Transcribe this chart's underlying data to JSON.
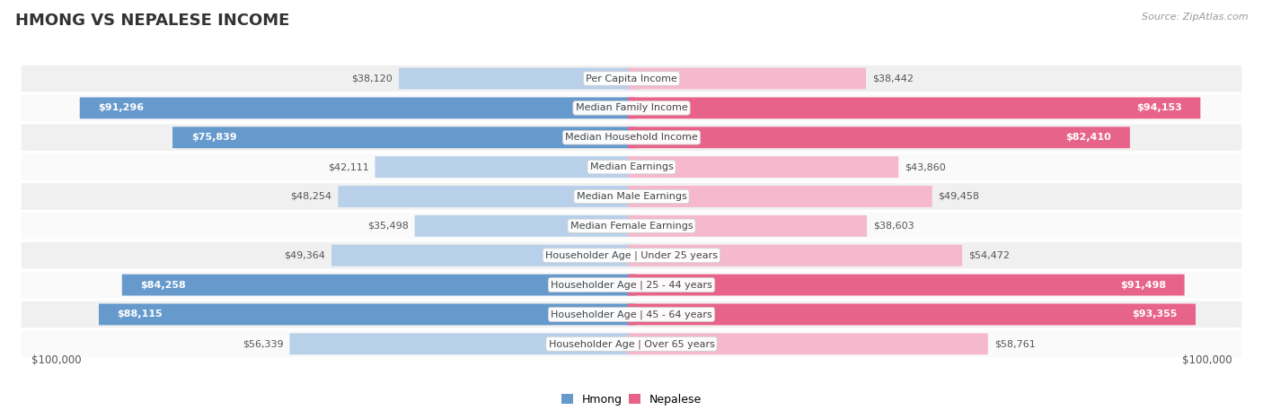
{
  "title": "HMONG VS NEPALESE INCOME",
  "source": "Source: ZipAtlas.com",
  "categories": [
    "Per Capita Income",
    "Median Family Income",
    "Median Household Income",
    "Median Earnings",
    "Median Male Earnings",
    "Median Female Earnings",
    "Householder Age | Under 25 years",
    "Householder Age | 25 - 44 years",
    "Householder Age | 45 - 64 years",
    "Householder Age | Over 65 years"
  ],
  "hmong_values": [
    38120,
    91296,
    75839,
    42111,
    48254,
    35498,
    49364,
    84258,
    88115,
    56339
  ],
  "nepalese_values": [
    38442,
    94153,
    82410,
    43860,
    49458,
    38603,
    54472,
    91498,
    93355,
    58761
  ],
  "hmong_labels": [
    "$38,120",
    "$91,296",
    "$75,839",
    "$42,111",
    "$48,254",
    "$35,498",
    "$49,364",
    "$84,258",
    "$88,115",
    "$56,339"
  ],
  "nepalese_labels": [
    "$38,442",
    "$94,153",
    "$82,410",
    "$43,860",
    "$49,458",
    "$38,603",
    "$54,472",
    "$91,498",
    "$93,355",
    "$58,761"
  ],
  "max_value": 100000,
  "hmong_light": "#b8d0ea",
  "hmong_dark": "#6699cc",
  "nepalese_light": "#f5b8cc",
  "nepalese_dark": "#e8638a",
  "row_bg_odd": "#f0f0f0",
  "row_bg_even": "#fafafa",
  "xlabel_left": "$100,000",
  "xlabel_right": "$100,000",
  "legend_hmong": "Hmong",
  "legend_nepalese": "Nepalese",
  "dark_threshold": 65000,
  "cat_label_fontsize": 8,
  "val_label_fontsize": 8
}
